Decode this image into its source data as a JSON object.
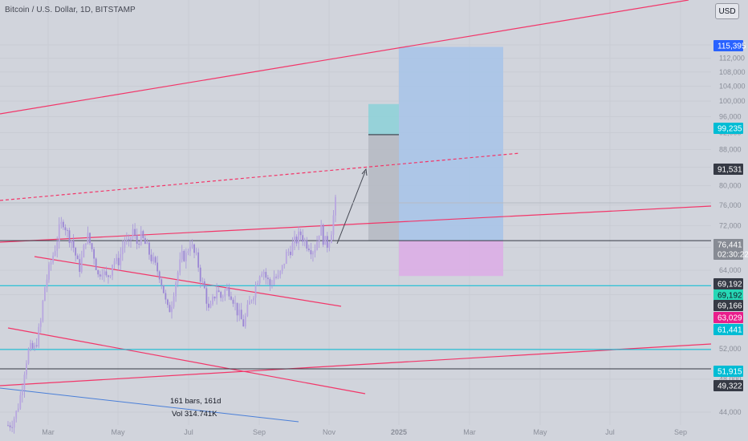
{
  "header": {
    "symbol_title": "Bitcoin / U.S. Dollar, 1D, BITSTAMP",
    "currency_button": "USD"
  },
  "chart_data": {
    "type": "candlestick",
    "symbol": "Bitcoin / U.S. Dollar",
    "interval": "1D",
    "exchange": "BITSTAMP",
    "y_scale": "log",
    "ylim": [
      41500,
      134000
    ],
    "y_ticks": [
      44000,
      48000,
      52000,
      56000,
      60000,
      64000,
      68000,
      72000,
      76000,
      80000,
      84000,
      88000,
      92000,
      96000,
      100000,
      104000,
      108000,
      112000,
      116000
    ],
    "y_tick_labels": [
      "44,000",
      "48,000",
      "52,000",
      "56,000",
      "60,000",
      "64,000",
      "68,000",
      "72,000",
      "76,000",
      "80,000",
      "84,000",
      "88,000",
      "92,000",
      "96,000",
      "100,000",
      "104,000",
      "108,000",
      "112,000",
      "116,000"
    ],
    "x_tick_labels": [
      "Mar",
      "May",
      "Jul",
      "Sep",
      "Nov",
      "2025",
      "Mar",
      "May",
      "Jul",
      "Sep"
    ],
    "x_ticks_bold": [
      "2025"
    ],
    "price_path": [
      [
        0,
        42500
      ],
      [
        4,
        42800
      ],
      [
        9,
        44000
      ],
      [
        14,
        46500
      ],
      [
        18,
        50000
      ],
      [
        22,
        51900
      ],
      [
        28,
        52000
      ],
      [
        34,
        55500
      ],
      [
        38,
        61000
      ],
      [
        42,
        63500
      ],
      [
        46,
        66000
      ],
      [
        50,
        68500
      ],
      [
        54,
        71500
      ],
      [
        58,
        73000
      ],
      [
        62,
        70500
      ],
      [
        66,
        69500
      ],
      [
        70,
        67000
      ],
      [
        74,
        64000
      ],
      [
        78,
        66500
      ],
      [
        82,
        70500
      ],
      [
        86,
        68500
      ],
      [
        90,
        66500
      ],
      [
        94,
        63000
      ],
      [
        98,
        64500
      ],
      [
        102,
        62500
      ],
      [
        106,
        63500
      ],
      [
        110,
        66000
      ],
      [
        114,
        65000
      ],
      [
        118,
        67000
      ],
      [
        122,
        69500
      ],
      [
        126,
        68000
      ],
      [
        130,
        71500
      ],
      [
        134,
        68500
      ],
      [
        138,
        70000
      ],
      [
        142,
        69000
      ],
      [
        146,
        67500
      ],
      [
        150,
        66000
      ],
      [
        154,
        64500
      ],
      [
        158,
        63500
      ],
      [
        162,
        61000
      ],
      [
        166,
        57500
      ],
      [
        170,
        58000
      ],
      [
        174,
        61500
      ],
      [
        178,
        64000
      ],
      [
        182,
        66500
      ],
      [
        186,
        66500
      ],
      [
        190,
        69000
      ],
      [
        194,
        67000
      ],
      [
        198,
        65500
      ],
      [
        202,
        62000
      ],
      [
        206,
        60500
      ],
      [
        210,
        57000
      ],
      [
        214,
        59000
      ],
      [
        218,
        61000
      ],
      [
        222,
        59500
      ],
      [
        226,
        60500
      ],
      [
        230,
        61000
      ],
      [
        234,
        60000
      ],
      [
        238,
        58000
      ],
      [
        242,
        56500
      ],
      [
        246,
        55500
      ],
      [
        250,
        57500
      ],
      [
        254,
        59500
      ],
      [
        258,
        61000
      ],
      [
        262,
        63500
      ],
      [
        266,
        64500
      ],
      [
        270,
        62500
      ],
      [
        274,
        61500
      ],
      [
        278,
        63000
      ],
      [
        282,
        62500
      ],
      [
        286,
        64000
      ],
      [
        290,
        66500
      ],
      [
        294,
        67500
      ],
      [
        298,
        68500
      ],
      [
        302,
        69500
      ],
      [
        306,
        70500
      ],
      [
        310,
        69000
      ],
      [
        314,
        68500
      ],
      [
        318,
        67500
      ],
      [
        322,
        68500
      ],
      [
        326,
        72000
      ],
      [
        330,
        69000
      ],
      [
        334,
        68500
      ],
      [
        338,
        71500
      ],
      [
        342,
        76441
      ]
    ],
    "last_price": 76441,
    "countdown": "02:30:22",
    "price_tags": [
      {
        "label": "115,395",
        "price": 115395,
        "color": "#2962ff"
      },
      {
        "label": "99,235",
        "price": 99235,
        "color": "#00bcd4"
      },
      {
        "label": "91,531",
        "price": 91531,
        "color": "#363a45"
      },
      {
        "label": "76,441",
        "price": 76441,
        "color": "#878b94"
      },
      {
        "label": "69,192",
        "price": 69192,
        "color": "#363a45"
      },
      {
        "label": "69,192",
        "price": 69192,
        "color": "#26d7b5"
      },
      {
        "label": "69,166",
        "price": 69166,
        "color": "#363a45"
      },
      {
        "label": "63,029",
        "price": 63029,
        "color": "#e91e8c"
      },
      {
        "label": "61,441",
        "price": 61441,
        "color": "#00bcd4"
      },
      {
        "label": "51,915",
        "price": 51915,
        "color": "#00bcd4"
      },
      {
        "label": "49,322",
        "price": 49322,
        "color": "#363a45"
      }
    ],
    "horizontal_lines": [
      {
        "price": 69192,
        "color": "#363a45"
      },
      {
        "price": 61441,
        "color": "#00bcd4"
      },
      {
        "price": 51915,
        "color": "#00bcd4"
      },
      {
        "price": 49322,
        "color": "#363a45"
      }
    ],
    "position_boxes": [
      {
        "kind": "long-target",
        "start": "Nov 2024",
        "end": "Jan 2025",
        "top": 99235,
        "bottom": 91531,
        "color": "#8fd1d8"
      },
      {
        "kind": "long-range",
        "start": "Nov 2024",
        "end": "Jan 2025",
        "top": 91531,
        "bottom": 69192,
        "color": "#b5b8c2"
      },
      {
        "kind": "long-target",
        "start": "Jan 2025",
        "end": "Mar 2025",
        "top": 115395,
        "bottom": 69192,
        "color": "#a9c4e8"
      },
      {
        "kind": "long-stop",
        "start": "Jan 2025",
        "end": "Mar 2025",
        "top": 69192,
        "bottom": 63029,
        "color": "#dcaee6"
      }
    ],
    "annotations": {
      "bars_label": "161 bars, 161d",
      "volume_label": "Vol 314.741K"
    }
  }
}
